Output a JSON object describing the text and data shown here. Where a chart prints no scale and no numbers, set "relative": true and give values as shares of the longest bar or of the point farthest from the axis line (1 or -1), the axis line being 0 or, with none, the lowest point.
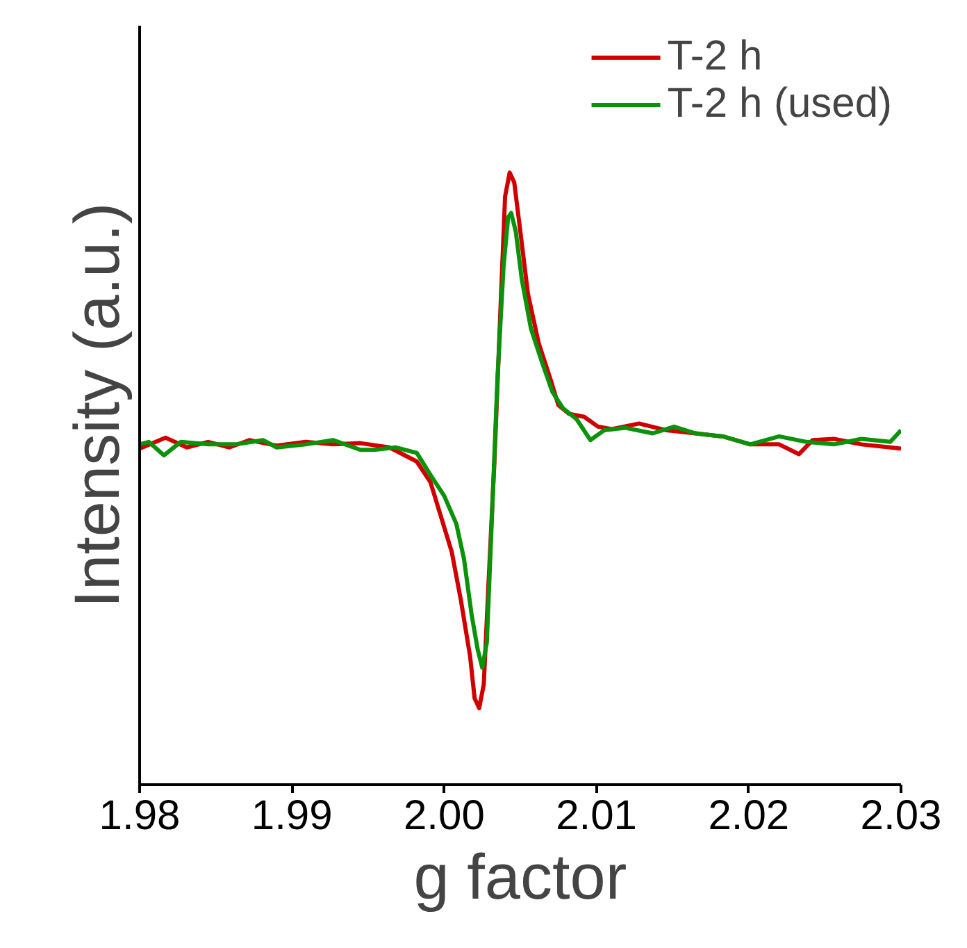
{
  "chart_data": {
    "type": "line",
    "xlabel": "g factor",
    "ylabel": "Intensity (a.u.)",
    "relative": true,
    "xlim": [
      1.98,
      2.03
    ],
    "xticks": [
      {
        "value": 1.98,
        "label": "1.98"
      },
      {
        "value": 1.99,
        "label": "1.99"
      },
      {
        "value": 2.0,
        "label": "2.00"
      },
      {
        "value": 2.01,
        "label": "2.01"
      },
      {
        "value": 2.02,
        "label": "2.02"
      },
      {
        "value": 2.03,
        "label": "2.03"
      }
    ],
    "tick_labels": "x",
    "grid": false,
    "legend": "top right",
    "series": [
      {
        "name": "T-2 h",
        "color": "#d00000",
        "x": [
          1.98,
          1.9817,
          1.9831,
          1.9845,
          1.9859,
          1.9872,
          1.989,
          1.9909,
          1.9927,
          1.9945,
          1.9964,
          1.9982,
          1.9991,
          1.9998,
          2.0005,
          2.0011,
          2.0017,
          2.002,
          2.0023,
          2.0026,
          2.0029,
          2.0033,
          2.0037,
          2.004,
          2.0043,
          2.0046,
          2.005,
          2.0055,
          2.0062,
          2.007,
          2.0075,
          2.0082,
          2.0092,
          2.0101,
          2.011,
          2.0128,
          2.0146,
          2.0165,
          2.0183,
          2.0201,
          2.022,
          2.0233,
          2.0242,
          2.0256,
          2.0274,
          2.0293,
          2.03
        ],
        "values": [
          0.549,
          0.567,
          0.551,
          0.56,
          0.551,
          0.563,
          0.554,
          0.56,
          0.556,
          0.558,
          0.551,
          0.528,
          0.494,
          0.437,
          0.38,
          0.301,
          0.21,
          0.141,
          0.125,
          0.164,
          0.323,
          0.528,
          0.779,
          0.961,
          1.0,
          0.984,
          0.904,
          0.802,
          0.722,
          0.661,
          0.62,
          0.606,
          0.601,
          0.585,
          0.581,
          0.59,
          0.579,
          0.574,
          0.569,
          0.556,
          0.556,
          0.54,
          0.563,
          0.565,
          0.556,
          0.551,
          0.549
        ]
      },
      {
        "name": "T-2 h (used)",
        "color": "#0a930a",
        "x": [
          1.98,
          1.9806,
          1.9816,
          1.9827,
          1.9845,
          1.9863,
          1.9881,
          1.989,
          1.9909,
          1.9927,
          1.9945,
          1.9954,
          1.9968,
          1.9982,
          1.9991,
          2.0,
          2.0008,
          2.0013,
          2.0018,
          2.0022,
          2.0025,
          2.0028,
          2.0031,
          2.0035,
          2.0039,
          2.0042,
          2.0044,
          2.0047,
          2.0051,
          2.0057,
          2.0064,
          2.0071,
          2.0078,
          2.0087,
          2.0096,
          2.0105,
          2.0119,
          2.0137,
          2.0151,
          2.0165,
          2.0183,
          2.0201,
          2.022,
          2.0238,
          2.0256,
          2.0274,
          2.0293,
          2.03
        ],
        "values": [
          0.556,
          0.56,
          0.538,
          0.56,
          0.556,
          0.556,
          0.563,
          0.551,
          0.556,
          0.563,
          0.547,
          0.547,
          0.551,
          0.542,
          0.506,
          0.472,
          0.426,
          0.369,
          0.278,
          0.221,
          0.191,
          0.232,
          0.415,
          0.665,
          0.847,
          0.927,
          0.934,
          0.904,
          0.825,
          0.745,
          0.692,
          0.642,
          0.615,
          0.597,
          0.563,
          0.579,
          0.583,
          0.574,
          0.585,
          0.574,
          0.569,
          0.556,
          0.569,
          0.56,
          0.556,
          0.565,
          0.56,
          0.579
        ]
      }
    ]
  }
}
